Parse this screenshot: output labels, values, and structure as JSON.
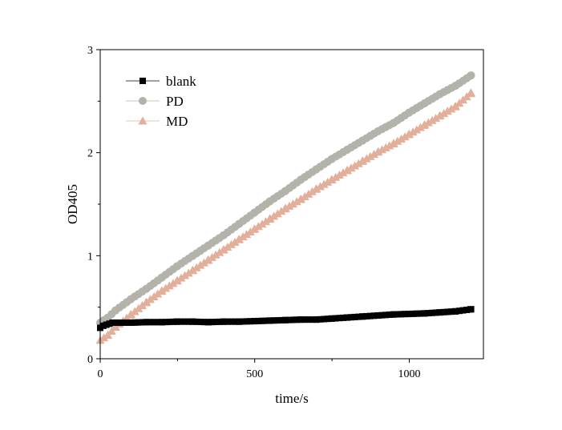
{
  "chart_data": {
    "type": "scatter",
    "title": "",
    "xlabel": "time/s",
    "ylabel": "OD405",
    "xlim": [
      0,
      1240
    ],
    "ylim": [
      0,
      3
    ],
    "x_ticks": [
      0,
      500,
      1000
    ],
    "y_ticks": [
      0,
      1,
      2,
      3
    ],
    "legend": "top-left",
    "grid": false,
    "series": [
      {
        "name": "blank",
        "marker": "square",
        "color": "#000000",
        "points": [
          [
            0,
            0.3
          ],
          [
            10,
            0.32
          ],
          [
            20,
            0.33
          ],
          [
            30,
            0.34
          ],
          [
            40,
            0.35
          ],
          [
            50,
            0.35
          ],
          [
            100,
            0.35
          ],
          [
            150,
            0.355
          ],
          [
            200,
            0.355
          ],
          [
            250,
            0.36
          ],
          [
            300,
            0.36
          ],
          [
            350,
            0.355
          ],
          [
            400,
            0.36
          ],
          [
            450,
            0.36
          ],
          [
            500,
            0.365
          ],
          [
            550,
            0.37
          ],
          [
            600,
            0.375
          ],
          [
            650,
            0.38
          ],
          [
            700,
            0.38
          ],
          [
            750,
            0.39
          ],
          [
            800,
            0.4
          ],
          [
            850,
            0.41
          ],
          [
            900,
            0.42
          ],
          [
            950,
            0.43
          ],
          [
            1000,
            0.435
          ],
          [
            1050,
            0.44
          ],
          [
            1100,
            0.45
          ],
          [
            1150,
            0.46
          ],
          [
            1200,
            0.48
          ]
        ]
      },
      {
        "name": "PD",
        "marker": "circle",
        "color": "#b3b3ab",
        "points": [
          [
            0,
            0.35
          ],
          [
            25,
            0.4
          ],
          [
            50,
            0.47
          ],
          [
            100,
            0.58
          ],
          [
            150,
            0.68
          ],
          [
            200,
            0.79
          ],
          [
            250,
            0.9
          ],
          [
            300,
            1.0
          ],
          [
            350,
            1.1
          ],
          [
            400,
            1.2
          ],
          [
            450,
            1.31
          ],
          [
            500,
            1.42
          ],
          [
            550,
            1.53
          ],
          [
            600,
            1.63
          ],
          [
            650,
            1.74
          ],
          [
            700,
            1.84
          ],
          [
            750,
            1.94
          ],
          [
            800,
            2.03
          ],
          [
            850,
            2.12
          ],
          [
            900,
            2.21
          ],
          [
            950,
            2.29
          ],
          [
            1000,
            2.39
          ],
          [
            1050,
            2.48
          ],
          [
            1100,
            2.57
          ],
          [
            1150,
            2.65
          ],
          [
            1200,
            2.75
          ]
        ]
      },
      {
        "name": "MD",
        "marker": "triangle",
        "color": "#e2b09a",
        "points": [
          [
            0,
            0.18
          ],
          [
            25,
            0.23
          ],
          [
            50,
            0.31
          ],
          [
            100,
            0.43
          ],
          [
            150,
            0.55
          ],
          [
            200,
            0.66
          ],
          [
            250,
            0.76
          ],
          [
            300,
            0.86
          ],
          [
            350,
            0.96
          ],
          [
            400,
            1.06
          ],
          [
            450,
            1.16
          ],
          [
            500,
            1.26
          ],
          [
            550,
            1.36
          ],
          [
            600,
            1.46
          ],
          [
            650,
            1.55
          ],
          [
            700,
            1.65
          ],
          [
            750,
            1.74
          ],
          [
            800,
            1.83
          ],
          [
            850,
            1.92
          ],
          [
            900,
            2.01
          ],
          [
            950,
            2.09
          ],
          [
            1000,
            2.18
          ],
          [
            1050,
            2.27
          ],
          [
            1100,
            2.36
          ],
          [
            1150,
            2.45
          ],
          [
            1200,
            2.58
          ]
        ]
      }
    ]
  }
}
